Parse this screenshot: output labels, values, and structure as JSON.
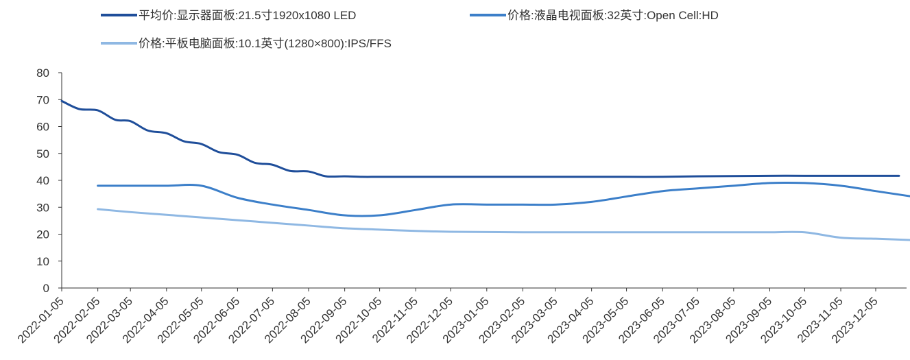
{
  "chart_data": {
    "type": "line",
    "legend_position": "top",
    "grid": false,
    "ylim": [
      0,
      80
    ],
    "y_ticks": [
      "0",
      "10",
      "20",
      "30",
      "40",
      "50",
      "60",
      "70",
      "80"
    ],
    "x_ticks": [
      "2022-01-05",
      "2022-02-05",
      "2022-03-05",
      "2022-04-05",
      "2022-05-05",
      "2022-06-05",
      "2022-07-05",
      "2022-08-05",
      "2022-09-05",
      "2022-10-05",
      "2022-11-05",
      "2022-12-05",
      "2023-01-05",
      "2023-02-05",
      "2023-03-05",
      "2023-04-05",
      "2023-05-05",
      "2023-06-05",
      "2023-07-05",
      "2023-08-05",
      "2023-09-05",
      "2023-10-05",
      "2023-11-05",
      "2023-12-05"
    ],
    "series": [
      {
        "name": "平均价:显示器面板:21.5寸1920x1080 LED",
        "color": "#1f4e9a",
        "points": [
          [
            "2022-01-05",
            69.5
          ],
          [
            "2022-01-20",
            66.5
          ],
          [
            "2022-02-05",
            66.0
          ],
          [
            "2022-02-20",
            62.5
          ],
          [
            "2022-03-05",
            62.0
          ],
          [
            "2022-03-20",
            58.5
          ],
          [
            "2022-04-05",
            57.5
          ],
          [
            "2022-04-20",
            54.5
          ],
          [
            "2022-05-05",
            53.5
          ],
          [
            "2022-05-20",
            50.5
          ],
          [
            "2022-06-05",
            49.5
          ],
          [
            "2022-06-20",
            46.5
          ],
          [
            "2022-07-05",
            45.8
          ],
          [
            "2022-07-20",
            43.5
          ],
          [
            "2022-08-05",
            43.3
          ],
          [
            "2022-08-20",
            41.5
          ],
          [
            "2022-09-05",
            41.5
          ],
          [
            "2022-09-20",
            41.3
          ],
          [
            "2022-10-05",
            41.3
          ],
          [
            "2022-11-05",
            41.3
          ],
          [
            "2022-12-05",
            41.3
          ],
          [
            "2023-01-05",
            41.3
          ],
          [
            "2023-02-05",
            41.3
          ],
          [
            "2023-03-05",
            41.3
          ],
          [
            "2023-04-05",
            41.3
          ],
          [
            "2023-05-05",
            41.3
          ],
          [
            "2023-06-05",
            41.3
          ],
          [
            "2023-07-05",
            41.5
          ],
          [
            "2023-08-05",
            41.6
          ],
          [
            "2023-09-05",
            41.7
          ],
          [
            "2023-10-05",
            41.7
          ],
          [
            "2023-11-05",
            41.7
          ],
          [
            "2023-12-05",
            41.7
          ],
          [
            "2023-12-25",
            41.7
          ]
        ]
      },
      {
        "name": "价格:液晶电视面板:32英寸:Open Cell:HD",
        "color": "#3c7fc9",
        "points": [
          [
            "2022-02-05",
            38
          ],
          [
            "2022-03-05",
            38
          ],
          [
            "2022-04-05",
            38
          ],
          [
            "2022-05-05",
            38
          ],
          [
            "2022-06-05",
            33.5
          ],
          [
            "2022-07-05",
            31
          ],
          [
            "2022-08-05",
            29
          ],
          [
            "2022-09-05",
            27
          ],
          [
            "2022-10-05",
            27
          ],
          [
            "2022-11-05",
            29
          ],
          [
            "2022-12-05",
            31
          ],
          [
            "2023-01-05",
            31
          ],
          [
            "2023-02-05",
            31
          ],
          [
            "2023-03-05",
            31
          ],
          [
            "2023-04-05",
            32
          ],
          [
            "2023-05-05",
            34
          ],
          [
            "2023-06-05",
            36
          ],
          [
            "2023-07-05",
            37
          ],
          [
            "2023-08-05",
            38
          ],
          [
            "2023-09-05",
            39
          ],
          [
            "2023-10-05",
            39
          ],
          [
            "2023-11-05",
            38
          ],
          [
            "2023-12-05",
            36
          ],
          [
            "2024-01-05",
            34
          ]
        ]
      },
      {
        "name": "价格:平板电脑面板:10.1英寸(1280×800):IPS/FFS",
        "color": "#8fb8e3",
        "points": [
          [
            "2022-02-05",
            29.3
          ],
          [
            "2022-03-05",
            28.2
          ],
          [
            "2022-04-05",
            27.2
          ],
          [
            "2022-05-05",
            26.2
          ],
          [
            "2022-06-05",
            25.2
          ],
          [
            "2022-07-05",
            24.2
          ],
          [
            "2022-08-05",
            23.2
          ],
          [
            "2022-09-05",
            22.2
          ],
          [
            "2022-10-05",
            21.7
          ],
          [
            "2022-11-05",
            21.2
          ],
          [
            "2022-12-05",
            20.9
          ],
          [
            "2023-01-05",
            20.8
          ],
          [
            "2023-02-05",
            20.7
          ],
          [
            "2023-03-05",
            20.7
          ],
          [
            "2023-04-05",
            20.7
          ],
          [
            "2023-05-05",
            20.7
          ],
          [
            "2023-06-05",
            20.7
          ],
          [
            "2023-07-05",
            20.7
          ],
          [
            "2023-08-05",
            20.7
          ],
          [
            "2023-09-05",
            20.7
          ],
          [
            "2023-10-05",
            20.7
          ],
          [
            "2023-11-05",
            18.7
          ],
          [
            "2023-12-05",
            18.3
          ],
          [
            "2024-01-05",
            17.8
          ]
        ]
      }
    ]
  }
}
